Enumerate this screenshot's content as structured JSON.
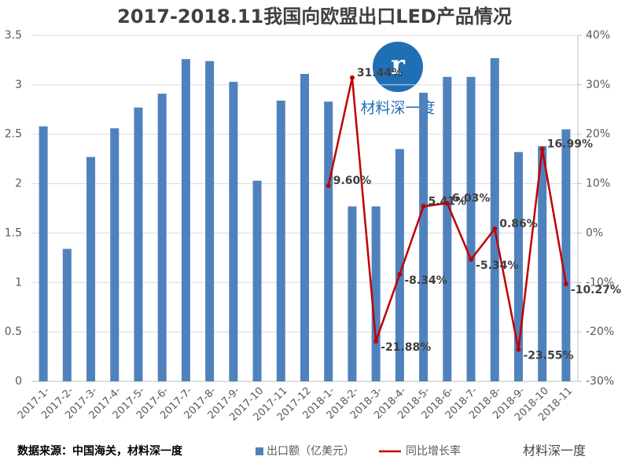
{
  "chart_data": {
    "type": "bar-line",
    "title": "2017-2018.11我国向欧盟出口LED产品情况",
    "source": "数据来源：中国海关，材料深一度",
    "watermark": "材料深一度",
    "brand": "材料深一度",
    "categories": [
      "2017-1-",
      "2017-2-",
      "2017-3-",
      "2017-4-",
      "2017-5-",
      "2017-6-",
      "2017-7-",
      "2017-8-",
      "2017-9-",
      "2017-10",
      "2017-11",
      "2017-12",
      "2018-1-",
      "2018-2-",
      "2018-3-",
      "2018-4-",
      "2018-5-",
      "2018-6-",
      "2018-7-",
      "2018-8-",
      "2018-9-",
      "2018-10",
      "2018-11"
    ],
    "series": [
      {
        "name": "出口额（亿美元）",
        "type": "bar",
        "color": "#4f81bd",
        "values": [
          2.58,
          1.34,
          2.27,
          2.56,
          2.77,
          2.91,
          3.26,
          3.24,
          3.03,
          2.03,
          2.84,
          3.11,
          2.83,
          1.77,
          1.77,
          2.35,
          2.92,
          3.08,
          3.08,
          3.27,
          2.32,
          2.38,
          2.55
        ]
      },
      {
        "name": "同比增长率",
        "type": "line",
        "axis": "y2",
        "color": "#c00000",
        "values": [
          null,
          null,
          null,
          null,
          null,
          null,
          null,
          null,
          null,
          null,
          null,
          null,
          9.6,
          31.44,
          -21.88,
          -8.34,
          5.41,
          6.03,
          -5.34,
          0.86,
          -23.55,
          16.99,
          -10.27
        ],
        "value_labels": [
          null,
          null,
          null,
          null,
          null,
          null,
          null,
          null,
          null,
          null,
          null,
          null,
          "9.60%",
          "31.44%",
          "-21.88%",
          "-8.34%",
          "5.41%",
          "6.03%",
          "-5.34%",
          "0.86%",
          "-23.55%",
          "16.99%",
          "-10.27%"
        ]
      }
    ],
    "ylim": [
      0,
      3.5
    ],
    "yticks": [
      0,
      0.5,
      1,
      1.5,
      2,
      2.5,
      3,
      3.5
    ],
    "y2lim": [
      -30,
      40
    ],
    "y2ticks": [
      {
        "value": -30,
        "label": "-30%"
      },
      {
        "value": -20,
        "label": "-20%"
      },
      {
        "value": -10,
        "label": "-10%"
      },
      {
        "value": 0,
        "label": "0%"
      },
      {
        "value": 10,
        "label": "10%"
      },
      {
        "value": 20,
        "label": "20%"
      },
      {
        "value": 30,
        "label": "30%"
      },
      {
        "value": 40,
        "label": "40%"
      }
    ],
    "grid": true
  }
}
